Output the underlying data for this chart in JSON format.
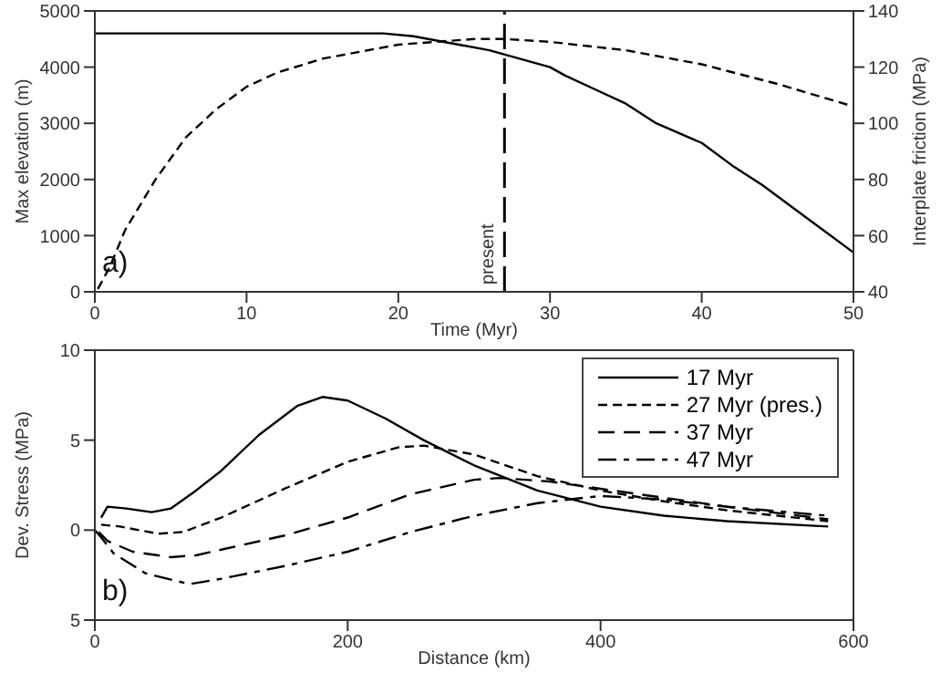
{
  "chart_data": [
    {
      "type": "line",
      "xlabel": "Time (Myr)",
      "ylabel": "Max elevation (m)",
      "y2label": "Interplate friction (MPa)",
      "xlim": [
        0,
        50
      ],
      "xticks": [
        0,
        10,
        20,
        30,
        40,
        50
      ],
      "ylim": [
        0,
        5000
      ],
      "yticks": [
        0,
        1000,
        2000,
        3000,
        4000,
        5000
      ],
      "y2lim": [
        40,
        140
      ],
      "y2ticks": [
        40,
        60,
        80,
        100,
        120,
        140
      ],
      "legend": false,
      "marker": "none",
      "series": [
        {
          "color": "#000000",
          "line_style": "solid",
          "x": [
            0,
            5,
            10,
            15,
            19,
            21,
            24,
            26,
            28,
            30,
            31,
            33,
            35,
            37,
            40,
            42,
            44,
            47,
            50
          ],
          "values": [
            4600,
            4600,
            4600,
            4600,
            4600,
            4550,
            4400,
            4300,
            4150,
            4000,
            3850,
            3600,
            3350,
            3000,
            2650,
            2250,
            1900,
            1300,
            700
          ]
        },
        {
          "color": "#000000",
          "line_style": "dashed",
          "axis": "y2",
          "x": [
            0.2,
            1,
            2,
            4,
            6,
            8,
            10,
            12,
            15,
            20,
            25,
            27,
            30,
            35,
            40,
            45,
            50
          ],
          "values": [
            41,
            49,
            62,
            80,
            95,
            105,
            113,
            118,
            123,
            128,
            130,
            130,
            129,
            126,
            121,
            114,
            106
          ]
        }
      ],
      "ref_lines": [
        {
          "axis": "x",
          "value": 27,
          "label": "present",
          "color": "#000000",
          "line_style": "dashed"
        }
      ],
      "annotations": [
        "a)"
      ]
    },
    {
      "type": "line",
      "xlabel": "Distance (km)",
      "ylabel": "Dev. Stress (MPa)",
      "xlim": [
        0,
        600
      ],
      "xticks": [
        0,
        200,
        400,
        600
      ],
      "ylim": [
        -5,
        10
      ],
      "yticks": [
        {
          "value": -5,
          "label": "5"
        },
        0,
        5,
        10
      ],
      "legend": "top right",
      "marker": "none",
      "series": [
        {
          "name": "17 Myr",
          "color": "#000000",
          "line_style": "solid",
          "x": [
            5,
            10,
            25,
            45,
            60,
            80,
            100,
            130,
            160,
            180,
            200,
            230,
            260,
            300,
            350,
            400,
            450,
            500,
            580
          ],
          "values": [
            0.7,
            1.3,
            1.2,
            1.0,
            1.2,
            2.2,
            3.3,
            5.3,
            6.9,
            7.4,
            7.2,
            6.2,
            5.0,
            3.6,
            2.2,
            1.3,
            0.8,
            0.5,
            0.2
          ]
        },
        {
          "name": "27 Myr (pres.)",
          "color": "#000000",
          "line_style": "dashed",
          "x": [
            5,
            20,
            50,
            70,
            100,
            150,
            200,
            240,
            260,
            300,
            350,
            400,
            450,
            500,
            580
          ],
          "values": [
            0.3,
            0.2,
            -0.2,
            -0.1,
            0.7,
            2.3,
            3.8,
            4.6,
            4.7,
            4.2,
            3.0,
            2.2,
            1.6,
            1.1,
            0.5
          ]
        },
        {
          "name": "37 Myr",
          "color": "#000000",
          "line_style": "dashed",
          "x": [
            3,
            10,
            30,
            60,
            80,
            150,
            200,
            250,
            300,
            320,
            360,
            400,
            450,
            500,
            580
          ],
          "values": [
            -0.1,
            -0.6,
            -1.2,
            -1.5,
            -1.4,
            -0.3,
            0.7,
            2.0,
            2.8,
            2.9,
            2.7,
            2.3,
            1.8,
            1.3,
            0.6
          ]
        },
        {
          "name": "47 Myr",
          "color": "#000000",
          "line_style": "dashdot",
          "x": [
            0,
            5,
            15,
            40,
            75,
            100,
            150,
            200,
            250,
            300,
            350,
            400,
            450,
            500,
            580
          ],
          "values": [
            0,
            -0.4,
            -1.3,
            -2.4,
            -3.0,
            -2.7,
            -2.0,
            -1.2,
            -0.1,
            0.8,
            1.5,
            1.9,
            1.7,
            1.3,
            0.8
          ]
        }
      ],
      "annotations": [
        "b)"
      ]
    }
  ]
}
